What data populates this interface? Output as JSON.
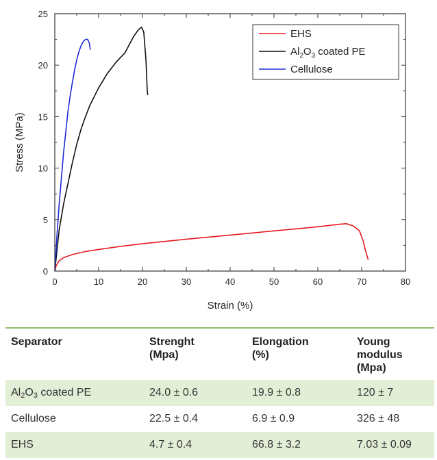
{
  "chart_data": {
    "type": "line",
    "xlabel": "Strain (%)",
    "ylabel": "Stress (MPa)",
    "xlim": [
      0,
      80
    ],
    "ylim": [
      0,
      25
    ],
    "xticks": [
      0,
      10,
      20,
      30,
      40,
      50,
      60,
      70,
      80
    ],
    "yticks": [
      0,
      5,
      10,
      15,
      20,
      25
    ],
    "grid": false,
    "legend_position": "top-right",
    "series": [
      {
        "name": "EHS",
        "color": "#e8191f",
        "points": [
          [
            0,
            0
          ],
          [
            0.3,
            0.5
          ],
          [
            1,
            1.0
          ],
          [
            2,
            1.3
          ],
          [
            4,
            1.6
          ],
          [
            7,
            1.9
          ],
          [
            10,
            2.1
          ],
          [
            15,
            2.4
          ],
          [
            20,
            2.65
          ],
          [
            30,
            3.1
          ],
          [
            40,
            3.5
          ],
          [
            50,
            3.9
          ],
          [
            60,
            4.3
          ],
          [
            65,
            4.55
          ],
          [
            66.5,
            4.6
          ],
          [
            68,
            4.4
          ],
          [
            69.5,
            3.9
          ],
          [
            70.3,
            3.0
          ],
          [
            71,
            1.8
          ],
          [
            71.5,
            1.1
          ]
        ]
      },
      {
        "name": "Al2O3 coated PE",
        "label_parts": {
          "a": "Al",
          "b": "2",
          "c": "O",
          "d": "3",
          "e": " coated PE"
        },
        "color": "#111111",
        "points": [
          [
            0,
            0
          ],
          [
            0.5,
            2
          ],
          [
            1,
            4
          ],
          [
            2,
            6.5
          ],
          [
            3,
            8.5
          ],
          [
            4,
            10.5
          ],
          [
            5,
            12.3
          ],
          [
            6,
            13.8
          ],
          [
            7,
            15.0
          ],
          [
            8,
            16.1
          ],
          [
            10,
            17.8
          ],
          [
            12,
            19.2
          ],
          [
            14,
            20.3
          ],
          [
            16,
            21.2
          ],
          [
            17,
            22.0
          ],
          [
            18,
            22.8
          ],
          [
            19,
            23.4
          ],
          [
            19.8,
            23.7
          ],
          [
            20.3,
            23.2
          ],
          [
            20.8,
            20.5
          ],
          [
            21.1,
            17.5
          ],
          [
            21.2,
            17.1
          ]
        ]
      },
      {
        "name": "Cellulose",
        "color": "#1f2ad6",
        "points": [
          [
            0,
            0
          ],
          [
            0.5,
            3.5
          ],
          [
            1,
            6.5
          ],
          [
            1.5,
            9
          ],
          [
            2,
            11.5
          ],
          [
            2.5,
            13.5
          ],
          [
            3,
            15.5
          ],
          [
            3.5,
            17.0
          ],
          [
            4,
            18.3
          ],
          [
            4.5,
            19.5
          ],
          [
            5,
            20.5
          ],
          [
            5.5,
            21.3
          ],
          [
            6,
            21.9
          ],
          [
            6.5,
            22.3
          ],
          [
            7,
            22.5
          ],
          [
            7.5,
            22.5
          ],
          [
            7.9,
            22.1
          ],
          [
            8.1,
            21.5
          ]
        ]
      }
    ]
  },
  "table": {
    "headers": {
      "separator": "Separator",
      "strength_1": "Strenght",
      "strength_2": "(Mpa)",
      "elongation_1": "Elongation",
      "elongation_2": "(%)",
      "young_1": "Young",
      "young_2": "modulus (Mpa)"
    },
    "rows": [
      {
        "separator_a": "Al",
        "separator_b": "2",
        "separator_c": "O",
        "separator_d": "3",
        "separator_e": " coated PE",
        "strength": "24.0 ± 0.6",
        "elongation": "19.9 ± 0.8",
        "young": "120 ± 7"
      },
      {
        "separator": "Cellulose",
        "strength": "22.5 ± 0.4",
        "elongation": "6.9 ± 0.9",
        "young": "326 ± 48"
      },
      {
        "separator": "EHS",
        "strength": "4.7 ± 0.4",
        "elongation": "66.8 ± 3.2",
        "young": "7.03 ± 0.09"
      }
    ]
  }
}
